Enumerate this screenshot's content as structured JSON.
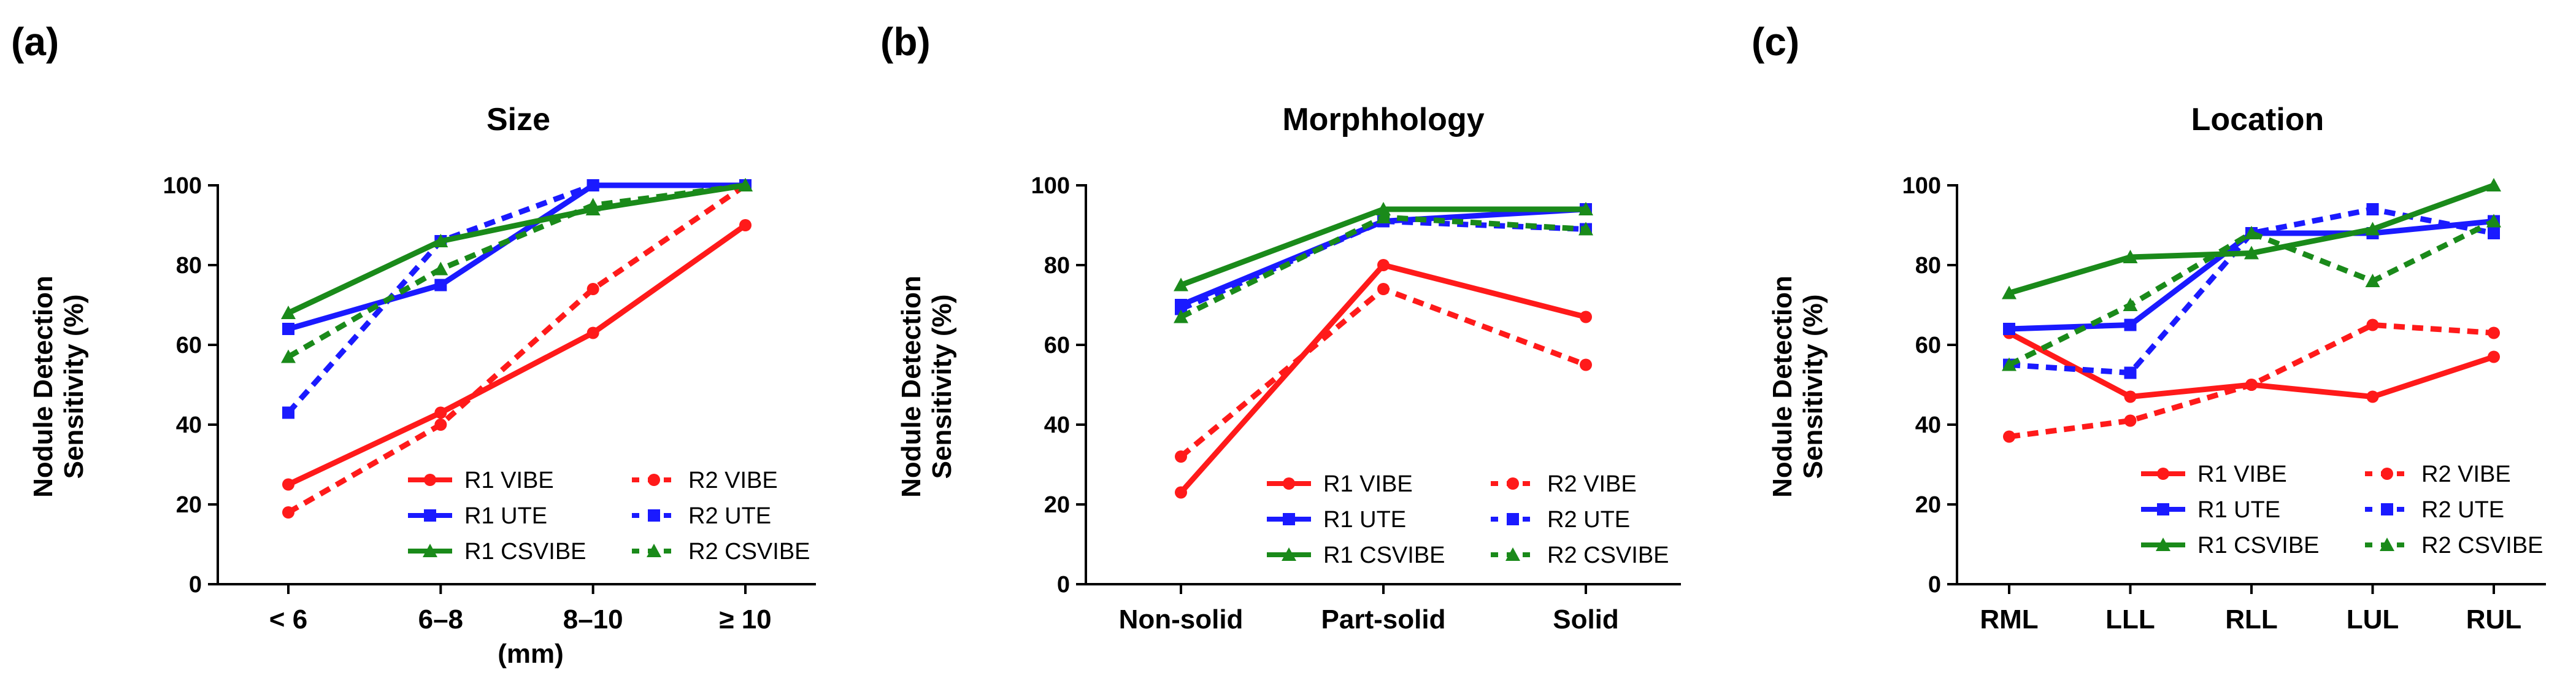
{
  "chart_data": [
    {
      "type": "line",
      "panel_label": "(a)",
      "title": "Size",
      "xlabel": "(mm)",
      "ylabel_line1": "Nodule Detection",
      "ylabel_line2": "Sensitivity (%)",
      "ylim": [
        0,
        100
      ],
      "yticks": [
        "0",
        "20",
        "40",
        "60",
        "80",
        "100"
      ],
      "categories": [
        "< 6",
        "6–8",
        "8–10",
        "≥ 10"
      ],
      "legend_position": "lower-right",
      "series": [
        {
          "name": "R1 VIBE",
          "color": "#ff1a1a",
          "style": "solid",
          "marker": "circle",
          "values": [
            25,
            43,
            63,
            90
          ]
        },
        {
          "name": "R2 VIBE",
          "color": "#ff1a1a",
          "style": "dashed",
          "marker": "circle",
          "values": [
            18,
            40,
            74,
            100
          ]
        },
        {
          "name": "R1 UTE",
          "color": "#1a1aff",
          "style": "solid",
          "marker": "square",
          "values": [
            64,
            75,
            100,
            100
          ]
        },
        {
          "name": "R2 UTE",
          "color": "#1a1aff",
          "style": "dashed",
          "marker": "square",
          "values": [
            43,
            86,
            100,
            100
          ]
        },
        {
          "name": "R1 CSVIBE",
          "color": "#1a8a1a",
          "style": "solid",
          "marker": "triangle",
          "values": [
            68,
            86,
            94,
            100
          ]
        },
        {
          "name": "R2 CSVIBE",
          "color": "#1a8a1a",
          "style": "dashed",
          "marker": "triangle",
          "values": [
            57,
            79,
            95,
            100
          ]
        }
      ]
    },
    {
      "type": "line",
      "panel_label": "(b)",
      "title": "Morphhology",
      "xlabel": "",
      "ylabel_line1": "Nodule Detection",
      "ylabel_line2": "Sensitivity (%)",
      "ylim": [
        0,
        100
      ],
      "yticks": [
        "0",
        "20",
        "40",
        "60",
        "80",
        "100"
      ],
      "categories": [
        "Non-solid",
        "Part-solid",
        "Solid"
      ],
      "legend_position": "lower-right",
      "series": [
        {
          "name": "R1 VIBE",
          "color": "#ff1a1a",
          "style": "solid",
          "marker": "circle",
          "values": [
            23,
            80,
            67
          ]
        },
        {
          "name": "R2 VIBE",
          "color": "#ff1a1a",
          "style": "dashed",
          "marker": "circle",
          "values": [
            32,
            74,
            55
          ]
        },
        {
          "name": "R1 UTE",
          "color": "#1a1aff",
          "style": "solid",
          "marker": "square",
          "values": [
            70,
            91,
            94
          ]
        },
        {
          "name": "R2 UTE",
          "color": "#1a1aff",
          "style": "dashed",
          "marker": "square",
          "values": [
            69,
            91,
            89
          ]
        },
        {
          "name": "R1 CSVIBE",
          "color": "#1a8a1a",
          "style": "solid",
          "marker": "triangle",
          "values": [
            75,
            94,
            94
          ]
        },
        {
          "name": "R2 CSVIBE",
          "color": "#1a8a1a",
          "style": "dashed",
          "marker": "triangle",
          "values": [
            67,
            92,
            89
          ]
        }
      ]
    },
    {
      "type": "line",
      "panel_label": "(c)",
      "title": "Location",
      "xlabel": "",
      "ylabel_line1": "Nodule Detection",
      "ylabel_line2": "Sensitivity (%)",
      "ylim": [
        0,
        100
      ],
      "yticks": [
        "0",
        "20",
        "40",
        "60",
        "80",
        "100"
      ],
      "categories": [
        "RML",
        "LLL",
        "RLL",
        "LUL",
        "RUL"
      ],
      "legend_position": "lower-right",
      "series": [
        {
          "name": "R1 VIBE",
          "color": "#ff1a1a",
          "style": "solid",
          "marker": "circle",
          "values": [
            63,
            47,
            50,
            47,
            57
          ]
        },
        {
          "name": "R2 VIBE",
          "color": "#ff1a1a",
          "style": "dashed",
          "marker": "circle",
          "values": [
            37,
            41,
            50,
            65,
            63
          ]
        },
        {
          "name": "R1 UTE",
          "color": "#1a1aff",
          "style": "solid",
          "marker": "square",
          "values": [
            64,
            65,
            88,
            88,
            91
          ]
        },
        {
          "name": "R2 UTE",
          "color": "#1a1aff",
          "style": "dashed",
          "marker": "square",
          "values": [
            55,
            53,
            88,
            94,
            88
          ]
        },
        {
          "name": "R1 CSVIBE",
          "color": "#1a8a1a",
          "style": "solid",
          "marker": "triangle",
          "values": [
            73,
            82,
            83,
            89,
            100
          ]
        },
        {
          "name": "R2 CSVIBE",
          "color": "#1a8a1a",
          "style": "dashed",
          "marker": "triangle",
          "values": [
            55,
            70,
            88,
            76,
            91
          ]
        }
      ]
    }
  ]
}
